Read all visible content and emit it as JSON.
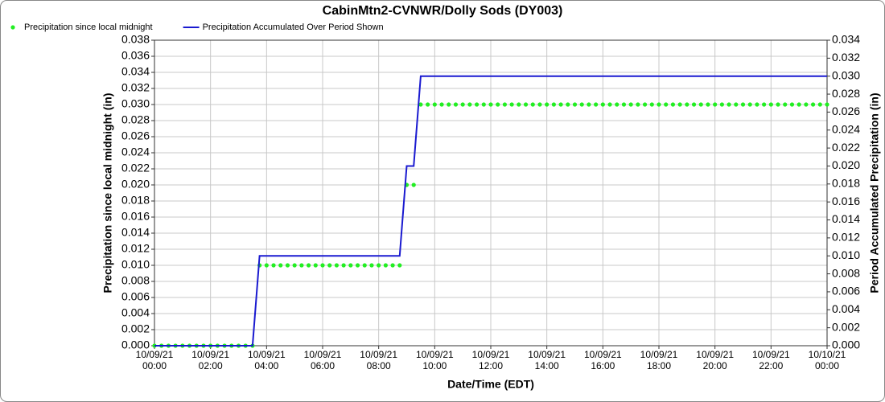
{
  "chart_data": {
    "type": "line",
    "title": "CabinMtn2-CVNWR/Dolly Sods (DY003)",
    "x_label": "Date/Time (EDT)",
    "y_label": "Precipitation since local midnight (in)",
    "y2_label": "Period Accumulated Precipitation (in)",
    "grid": true,
    "legend": "top-left",
    "xlim": [
      0,
      24
    ],
    "xticks": [
      {
        "value": 0,
        "label": "10/09/21 00:00"
      },
      {
        "value": 2,
        "label": "10/09/21 02:00"
      },
      {
        "value": 4,
        "label": "10/09/21 04:00"
      },
      {
        "value": 6,
        "label": "10/09/21 06:00"
      },
      {
        "value": 8,
        "label": "10/09/21 08:00"
      },
      {
        "value": 10,
        "label": "10/09/21 10:00"
      },
      {
        "value": 12,
        "label": "10/09/21 12:00"
      },
      {
        "value": 14,
        "label": "10/09/21 14:00"
      },
      {
        "value": 16,
        "label": "10/09/21 16:00"
      },
      {
        "value": 18,
        "label": "10/09/21 18:00"
      },
      {
        "value": 20,
        "label": "10/09/21 20:00"
      },
      {
        "value": 22,
        "label": "10/09/21 22:00"
      },
      {
        "value": 24,
        "label": "10/10/21 00:00"
      }
    ],
    "ylim": [
      0,
      0.038
    ],
    "yticks": [
      {
        "value": 0,
        "label": "0.000"
      },
      {
        "value": 0.002,
        "label": "0.002"
      },
      {
        "value": 0.004,
        "label": "0.004"
      },
      {
        "value": 0.006,
        "label": "0.006"
      },
      {
        "value": 0.008,
        "label": "0.008"
      },
      {
        "value": 0.01,
        "label": "0.010"
      },
      {
        "value": 0.012,
        "label": "0.012"
      },
      {
        "value": 0.014,
        "label": "0.014"
      },
      {
        "value": 0.016,
        "label": "0.016"
      },
      {
        "value": 0.018,
        "label": "0.018"
      },
      {
        "value": 0.02,
        "label": "0.020"
      },
      {
        "value": 0.022,
        "label": "0.022"
      },
      {
        "value": 0.024,
        "label": "0.024"
      },
      {
        "value": 0.026,
        "label": "0.026"
      },
      {
        "value": 0.028,
        "label": "0.028"
      },
      {
        "value": 0.03,
        "label": "0.030"
      },
      {
        "value": 0.032,
        "label": "0.032"
      },
      {
        "value": 0.034,
        "label": "0.034"
      },
      {
        "value": 0.036,
        "label": "0.036"
      },
      {
        "value": 0.038,
        "label": "0.038"
      }
    ],
    "y2lim": [
      0,
      0.034
    ],
    "y2ticks": [
      {
        "value": 0,
        "label": "0.000"
      },
      {
        "value": 0.002,
        "label": "0.002"
      },
      {
        "value": 0.004,
        "label": "0.004"
      },
      {
        "value": 0.006,
        "label": "0.006"
      },
      {
        "value": 0.008,
        "label": "0.008"
      },
      {
        "value": 0.01,
        "label": "0.010"
      },
      {
        "value": 0.012,
        "label": "0.012"
      },
      {
        "value": 0.014,
        "label": "0.014"
      },
      {
        "value": 0.016,
        "label": "0.016"
      },
      {
        "value": 0.018,
        "label": "0.018"
      },
      {
        "value": 0.02,
        "label": "0.020"
      },
      {
        "value": 0.022,
        "label": "0.022"
      },
      {
        "value": 0.024,
        "label": "0.024"
      },
      {
        "value": 0.026,
        "label": "0.026"
      },
      {
        "value": 0.028,
        "label": "0.028"
      },
      {
        "value": 0.03,
        "label": "0.030"
      },
      {
        "value": 0.032,
        "label": "0.032"
      },
      {
        "value": 0.034,
        "label": "0.034"
      }
    ],
    "x": [
      0,
      0.25,
      0.5,
      0.75,
      1,
      1.25,
      1.5,
      1.75,
      2,
      2.25,
      2.5,
      2.75,
      3,
      3.25,
      3.5,
      3.75,
      4,
      4.25,
      4.5,
      4.75,
      5,
      5.25,
      5.5,
      5.75,
      6,
      6.25,
      6.5,
      6.75,
      7,
      7.25,
      7.5,
      7.75,
      8,
      8.25,
      8.5,
      8.75,
      9,
      9.25,
      9.5,
      9.75,
      10,
      10.25,
      10.5,
      10.75,
      11,
      11.25,
      11.5,
      11.75,
      12,
      12.25,
      12.5,
      12.75,
      13,
      13.25,
      13.5,
      13.75,
      14,
      14.25,
      14.5,
      14.75,
      15,
      15.25,
      15.5,
      15.75,
      16,
      16.25,
      16.5,
      16.75,
      17,
      17.25,
      17.5,
      17.75,
      18,
      18.25,
      18.5,
      18.75,
      19,
      19.25,
      19.5,
      19.75,
      20,
      20.25,
      20.5,
      20.75,
      21,
      21.25,
      21.5,
      21.75,
      22,
      22.25,
      22.5,
      22.75,
      23,
      23.25,
      23.5,
      23.75,
      24
    ],
    "series": [
      {
        "name": "Precipitation since local midnight",
        "color": "#22ee22",
        "mode": "markers",
        "axis": "y",
        "values": [
          0,
          0,
          0,
          0,
          0,
          0,
          0,
          0,
          0,
          0,
          0,
          0,
          0,
          0,
          0,
          0.01,
          0.01,
          0.01,
          0.01,
          0.01,
          0.01,
          0.01,
          0.01,
          0.01,
          0.01,
          0.01,
          0.01,
          0.01,
          0.01,
          0.01,
          0.01,
          0.01,
          0.01,
          0.01,
          0.01,
          0.01,
          0.02,
          0.02,
          0.03,
          0.03,
          0.03,
          0.03,
          0.03,
          0.03,
          0.03,
          0.03,
          0.03,
          0.03,
          0.03,
          0.03,
          0.03,
          0.03,
          0.03,
          0.03,
          0.03,
          0.03,
          0.03,
          0.03,
          0.03,
          0.03,
          0.03,
          0.03,
          0.03,
          0.03,
          0.03,
          0.03,
          0.03,
          0.03,
          0.03,
          0.03,
          0.03,
          0.03,
          0.03,
          0.03,
          0.03,
          0.03,
          0.03,
          0.03,
          0.03,
          0.03,
          0.03,
          0.03,
          0.03,
          0.03,
          0.03,
          0.03,
          0.03,
          0.03,
          0.03,
          0.03,
          0.03,
          0.03,
          0.03,
          0.03,
          0.03,
          0.03,
          0.03
        ]
      },
      {
        "name": "Precipitation Accumulated Over Period Shown",
        "color": "#1a1ad0",
        "mode": "lines",
        "axis": "y2",
        "values": [
          0,
          0,
          0,
          0,
          0,
          0,
          0,
          0,
          0,
          0,
          0,
          0,
          0,
          0,
          0,
          0.01,
          0.01,
          0.01,
          0.01,
          0.01,
          0.01,
          0.01,
          0.01,
          0.01,
          0.01,
          0.01,
          0.01,
          0.01,
          0.01,
          0.01,
          0.01,
          0.01,
          0.01,
          0.01,
          0.01,
          0.01,
          0.02,
          0.02,
          0.03,
          0.03,
          0.03,
          0.03,
          0.03,
          0.03,
          0.03,
          0.03,
          0.03,
          0.03,
          0.03,
          0.03,
          0.03,
          0.03,
          0.03,
          0.03,
          0.03,
          0.03,
          0.03,
          0.03,
          0.03,
          0.03,
          0.03,
          0.03,
          0.03,
          0.03,
          0.03,
          0.03,
          0.03,
          0.03,
          0.03,
          0.03,
          0.03,
          0.03,
          0.03,
          0.03,
          0.03,
          0.03,
          0.03,
          0.03,
          0.03,
          0.03,
          0.03,
          0.03,
          0.03,
          0.03,
          0.03,
          0.03,
          0.03,
          0.03,
          0.03,
          0.03,
          0.03,
          0.03,
          0.03,
          0.03,
          0.03,
          0.03,
          0.03
        ]
      }
    ]
  }
}
